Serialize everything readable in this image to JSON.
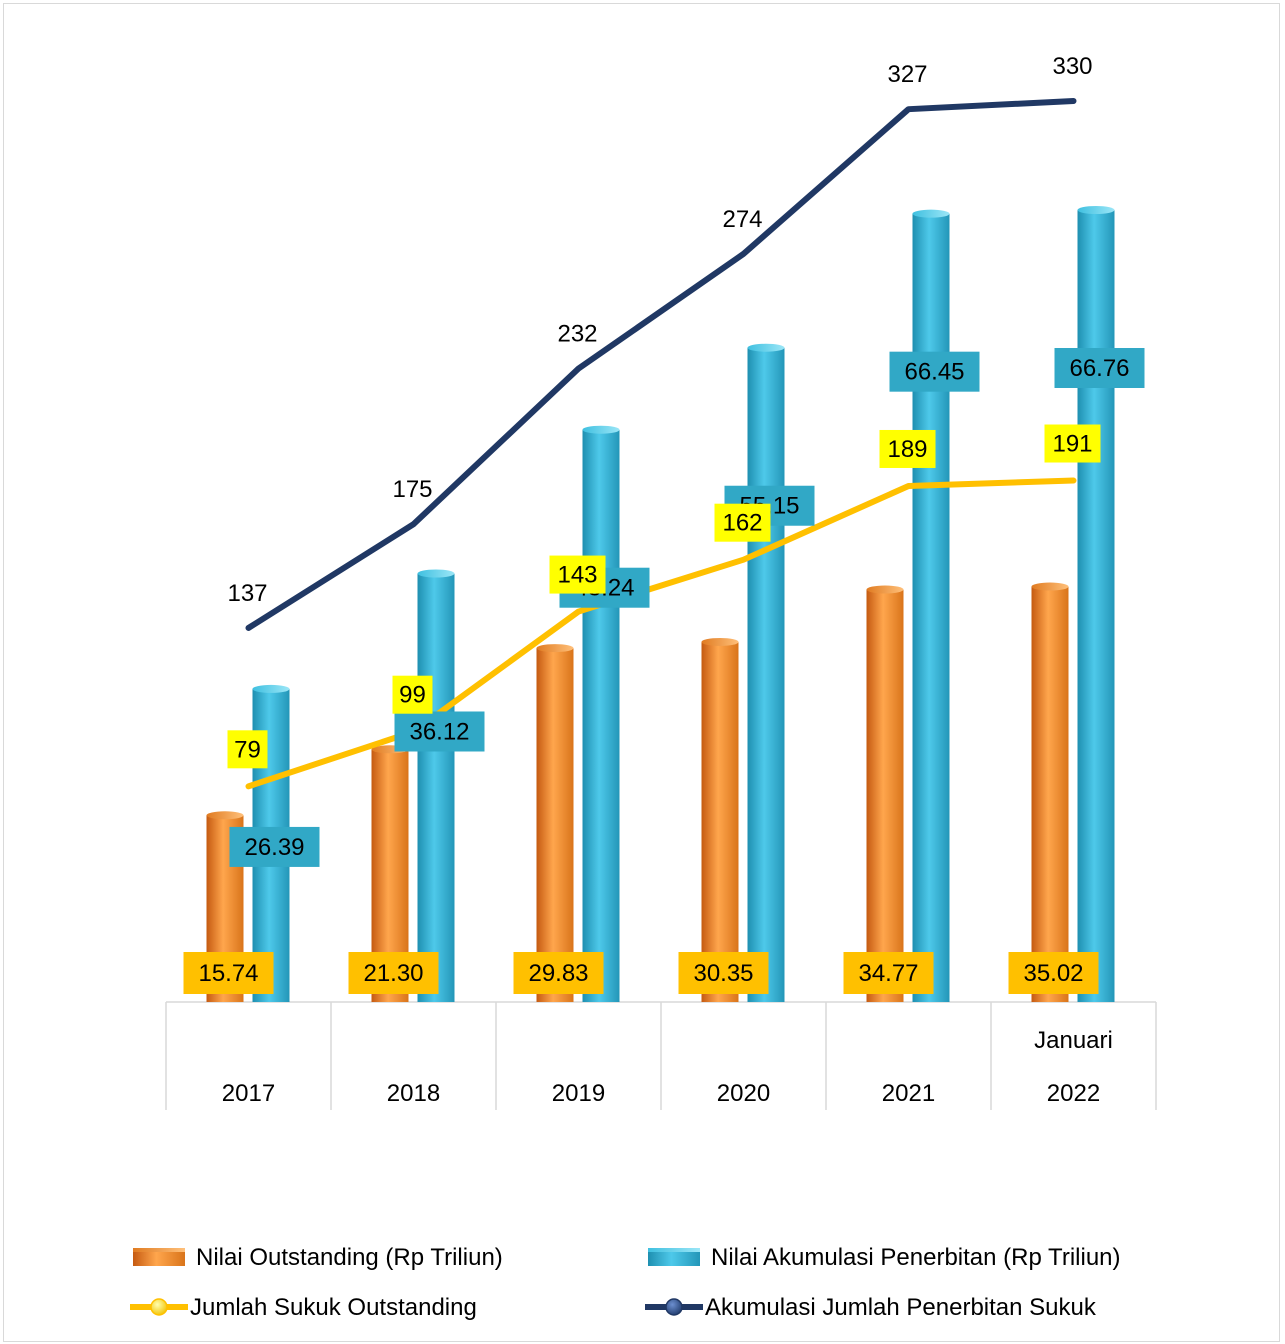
{
  "chart_data": {
    "type": "bar",
    "categories": [
      {
        "line1": "",
        "line2": "2017"
      },
      {
        "line1": "",
        "line2": "2018"
      },
      {
        "line1": "",
        "line2": "2019"
      },
      {
        "line1": "",
        "line2": "2020"
      },
      {
        "line1": "",
        "line2": "2021"
      },
      {
        "line1": "Januari",
        "line2": "2022"
      }
    ],
    "series": [
      {
        "name": "Nilai Outstanding (Rp Triliun)",
        "kind": "bar",
        "axis": "value",
        "color": "#F28C28",
        "values": [
          15.74,
          21.3,
          29.83,
          30.35,
          34.77,
          35.02
        ],
        "labels": [
          "15.74",
          "21.30",
          "29.83",
          "30.35",
          "34.77",
          "35.02"
        ]
      },
      {
        "name": "Nilai Akumulasi Penerbitan (Rp Triliun)",
        "kind": "bar",
        "axis": "value",
        "color": "#33B5D5",
        "values": [
          26.39,
          36.12,
          48.24,
          55.15,
          66.45,
          66.76
        ],
        "labels": [
          "26.39",
          "36.12",
          "48.24",
          "55.15",
          "66.45",
          "66.76"
        ]
      },
      {
        "name": "Jumlah Sukuk Outstanding",
        "kind": "line",
        "axis": "count",
        "color": "#FFC000",
        "values": [
          79,
          99,
          143,
          162,
          189,
          191
        ],
        "labels": [
          "79",
          "99",
          "143",
          "162",
          "189",
          "191"
        ]
      },
      {
        "name": "Akumulasi Jumlah Penerbitan Sukuk",
        "kind": "line",
        "axis": "count",
        "color": "#203864",
        "values": [
          137,
          175,
          232,
          274,
          327,
          330
        ],
        "labels": [
          "137",
          "175",
          "232",
          "274",
          "327",
          "330"
        ]
      }
    ],
    "legend": "bottom",
    "grid": false,
    "label_colors": {
      "outstanding_bg": "#FFC000",
      "akumulasi_bg": "#31A8C6",
      "jumlah_bg": "#FFFF00"
    }
  }
}
